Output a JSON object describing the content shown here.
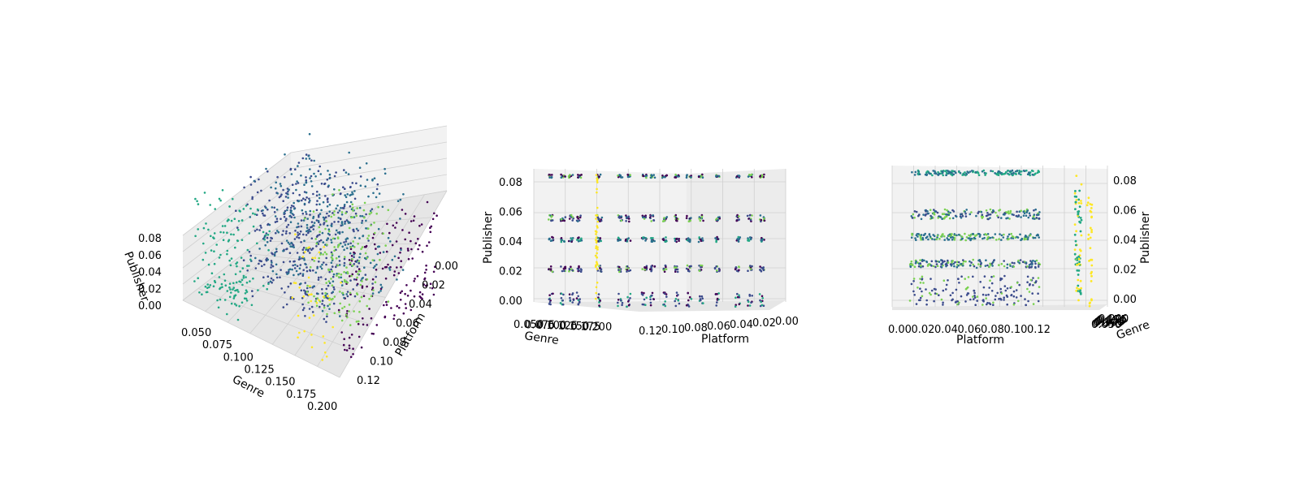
{
  "chart_data": [
    {
      "type": "scatter",
      "projection": "3d",
      "view": "elevated-oblique",
      "axes": {
        "x": {
          "label": "Genre",
          "ticks": [
            "0.050",
            "0.075",
            "0.100",
            "0.125",
            "0.150",
            "0.175",
            "0.200"
          ],
          "lim": [
            0.03,
            0.205
          ]
        },
        "y": {
          "label": "Platform",
          "ticks": [
            "0.00",
            "0.02",
            "0.04",
            "0.06",
            "0.08",
            "0.10",
            "0.12"
          ],
          "lim": [
            -0.005,
            0.13
          ]
        },
        "z": {
          "label": "Publisher",
          "ticks": [
            "0.00",
            "0.02",
            "0.04",
            "0.06",
            "0.08"
          ],
          "lim": [
            0,
            0.085
          ]
        }
      },
      "colormap": "viridis",
      "grid": true
    },
    {
      "type": "scatter",
      "projection": "3d",
      "view": "side-view-genre-platform",
      "axes": {
        "x": {
          "label": "Genre",
          "ticks": [
            "0.050",
            "0.075",
            "0.100",
            "0.125",
            "0.150",
            "0.175",
            "0.200"
          ]
        },
        "y": {
          "label": "Platform",
          "ticks": [
            "0.12",
            "0.10",
            "0.08",
            "0.06",
            "0.04",
            "0.02",
            "0.00"
          ]
        },
        "z": {
          "label": "Publisher",
          "ticks": [
            "0.00",
            "0.02",
            "0.04",
            "0.06",
            "0.08"
          ]
        }
      },
      "colormap": "viridis",
      "grid": true
    },
    {
      "type": "scatter",
      "projection": "3d",
      "view": "front-view-platform",
      "axes": {
        "x": {
          "label": "Platform",
          "ticks": [
            "0.00",
            "0.02",
            "0.04",
            "0.06",
            "0.08",
            "0.10",
            "0.12"
          ]
        },
        "y": {
          "label": "Genre",
          "ticks": [
            "0.050",
            "0.075",
            "0.100",
            "0.125",
            "0.150",
            "0.175",
            "0.200"
          ]
        },
        "z": {
          "label": "Publisher",
          "ticks": [
            "0.00",
            "0.02",
            "0.04",
            "0.06",
            "0.08"
          ]
        }
      },
      "colormap": "viridis",
      "grid": true
    }
  ],
  "colors": {
    "purple": "#440154",
    "indigo": "#3b4b8c",
    "teal": "#2a6f8e",
    "green": "#22a884",
    "lime": "#7ad151",
    "yellow": "#fde725",
    "pane": "#f2f2f2",
    "pane_dark": "#e6e6e6",
    "grid": "#d0d0d0"
  }
}
